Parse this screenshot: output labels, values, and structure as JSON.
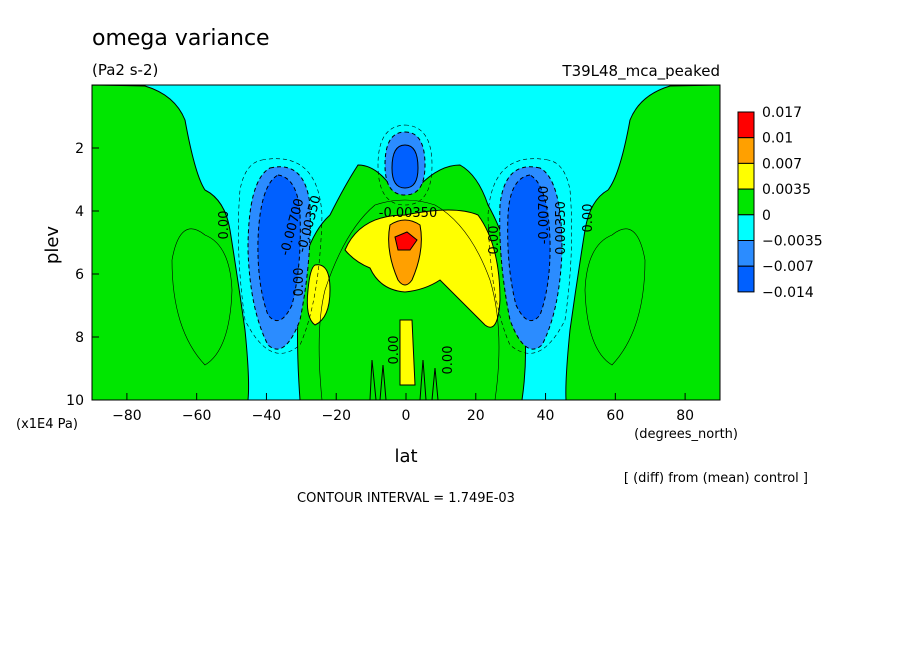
{
  "header": {
    "title": "omega variance",
    "units": "(Pa2 s-2)",
    "run": "T39L48_mca_peaked"
  },
  "footer": {
    "diff_note": "[ (diff) from (mean) control ]",
    "contour_interval": "CONTOUR INTERVAL = 1.749E-03"
  },
  "colors": {
    "c_n0014": "#0060ff",
    "c_n0007": "#2b8cff",
    "c_n00035": "#00ffff",
    "c_0": "#00e600",
    "c_p00035": "#ffff00",
    "c_p0007": "#ffa000",
    "c_p001": "#ff0000"
  },
  "chart_data": {
    "type": "heatmap",
    "title": "omega variance",
    "subtitle": "(Pa2 s-2)",
    "xlabel": "lat",
    "x_units": "(degrees_north)",
    "ylabel": "plev",
    "y_units": "(x1E4 Pa)",
    "xlim": [
      -90,
      90
    ],
    "ylim": [
      10,
      0
    ],
    "x_ticks": [
      -80,
      -60,
      -40,
      -20,
      0,
      20,
      40,
      60,
      80
    ],
    "x_tick_labels": [
      "−80",
      "−60",
      "−40",
      "−20",
      "0",
      "20",
      "40",
      "60",
      "80"
    ],
    "y_ticks": [
      2,
      4,
      6,
      8,
      10
    ],
    "y_tick_labels": [
      "2",
      "4",
      "6",
      "8",
      "10"
    ],
    "colorbar": {
      "levels": [
        "0.017",
        "0.01",
        "0.007",
        "0.0035",
        "0",
        "−0.0035",
        "−0.007",
        "−0.014"
      ],
      "colors": [
        "#ff0000",
        "#ffa000",
        "#ffff00",
        "#00e600",
        "#00ffff",
        "#2b8cff",
        "#0060ff"
      ]
    },
    "contour_labels": [
      "0.00",
      "-0.00700",
      "-0.00350",
      "0.00",
      "-0.00350",
      "0.00",
      "-0.00700",
      "0.00350",
      "0.00",
      "0.00",
      "0.00"
    ],
    "features": [
      {
        "kind": "min",
        "lat": -38,
        "plev": 5.0,
        "band": "−0.014"
      },
      {
        "kind": "min",
        "lat": 38,
        "plev": 5.0,
        "band": "−0.014"
      },
      {
        "kind": "min",
        "lat": 0,
        "plev": 2.6,
        "band": "−0.007"
      },
      {
        "kind": "max",
        "lat": 0,
        "plev": 5.0,
        "band": "0.017"
      }
    ]
  }
}
